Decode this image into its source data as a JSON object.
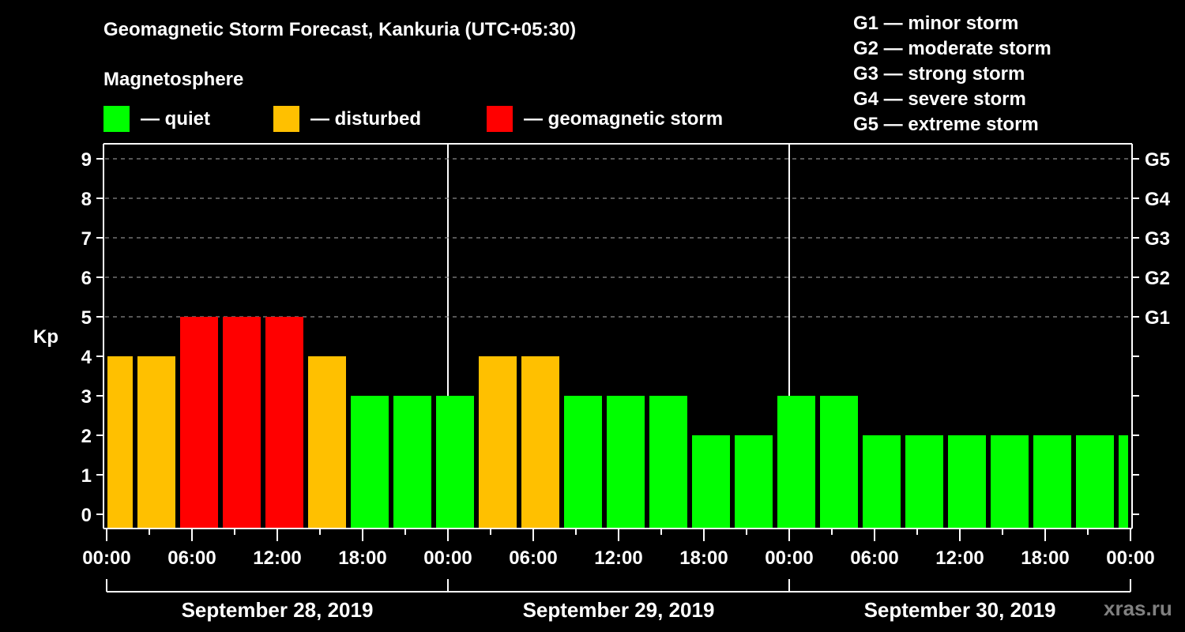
{
  "header": {
    "title": "Geomagnetic Storm Forecast, Kankuria (UTC+05:30)",
    "subtitle": "Magnetosphere"
  },
  "legend": {
    "items": [
      {
        "label": "— quiet",
        "color": "#00ff00"
      },
      {
        "label": "— disturbed",
        "color": "#ffc000"
      },
      {
        "label": "— geomagnetic storm",
        "color": "#ff0000"
      }
    ]
  },
  "g_scale_legend": [
    "G1 — minor storm",
    "G2 — moderate storm",
    "G3 — strong storm",
    "G4 — severe storm",
    "G5 — extreme storm"
  ],
  "watermark": "xras.ru",
  "chart_data": {
    "type": "bar",
    "title": "Geomagnetic Storm Forecast, Kankuria (UTC+05:30)",
    "ylabel": "Kp",
    "xlabel": "",
    "ylim": [
      0,
      9
    ],
    "y_ticks": [
      0,
      1,
      2,
      3,
      4,
      5,
      6,
      7,
      8,
      9
    ],
    "right_axis_labels": [
      {
        "kp": 5,
        "label": "G1"
      },
      {
        "kp": 6,
        "label": "G2"
      },
      {
        "kp": 7,
        "label": "G3"
      },
      {
        "kp": 8,
        "label": "G4"
      },
      {
        "kp": 9,
        "label": "G5"
      }
    ],
    "grid": "dashed horizontal at Kp 5-9",
    "x_tick_labels": [
      "00:00",
      "06:00",
      "12:00",
      "18:00",
      "00:00",
      "06:00",
      "12:00",
      "18:00",
      "00:00",
      "06:00",
      "12:00",
      "18:00",
      "00:00"
    ],
    "dates": [
      "September 28, 2019",
      "September 29, 2019",
      "September 30, 2019"
    ],
    "interval_hours": 3,
    "offset_note": "3-hour UTC slots shifted by +05:30; first and last bars are partial",
    "values": [
      4,
      4,
      5,
      5,
      5,
      4,
      3,
      3,
      3,
      4,
      4,
      3,
      3,
      3,
      2,
      2,
      3,
      3,
      2,
      2,
      2,
      2,
      2,
      2,
      2
    ],
    "colors_by_level": {
      "quiet": "#00ff00",
      "disturbed": "#ffc000",
      "storm": "#ff0000"
    },
    "thresholds": {
      "disturbed_min": 4,
      "storm_min": 5
    }
  }
}
